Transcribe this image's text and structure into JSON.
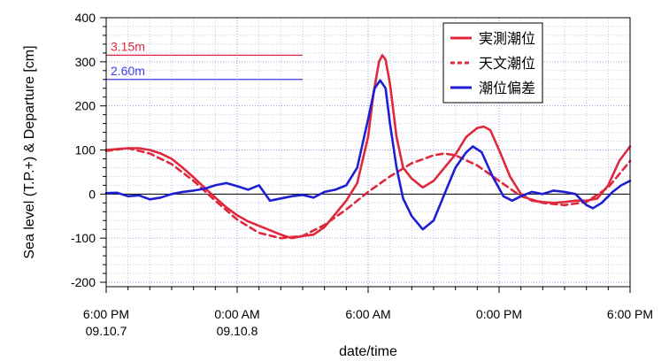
{
  "chart_data": {
    "type": "line",
    "xlabel": "date/time",
    "ylabel": "Sea level (T.P.+) & Departure [cm]",
    "ylim": [
      -210,
      400
    ],
    "xlim": [
      0,
      24
    ],
    "grid": true,
    "legend_position": "top-right",
    "y_ticks": [
      -200,
      -100,
      0,
      100,
      200,
      300,
      400
    ],
    "x_ticks": [
      {
        "x": 0,
        "line1": "6:00 PM",
        "line2": "09.10.7"
      },
      {
        "x": 6,
        "line1": "0:00 AM",
        "line2": "09.10.8"
      },
      {
        "x": 12,
        "line1": "6:00 AM",
        "line2": ""
      },
      {
        "x": 18,
        "line1": "0:00 PM",
        "line2": ""
      },
      {
        "x": 24,
        "line1": "6:00 PM",
        "line2": ""
      }
    ],
    "reference_lines": [
      {
        "label": "3.15m",
        "y": 315,
        "x_start": 0,
        "x_end": 9,
        "color": "#e0283c"
      },
      {
        "label": "2.60m",
        "y": 260,
        "x_start": 0,
        "x_end": 9,
        "color": "#3c3cf0"
      }
    ],
    "series": [
      {
        "name": "実測潮位",
        "color": "#e0283c",
        "dash": "solid",
        "points": [
          [
            0,
            100
          ],
          [
            0.5,
            102
          ],
          [
            1,
            104
          ],
          [
            1.5,
            104
          ],
          [
            2,
            100
          ],
          [
            2.5,
            92
          ],
          [
            3,
            80
          ],
          [
            3.5,
            60
          ],
          [
            4,
            38
          ],
          [
            4.5,
            15
          ],
          [
            5,
            -8
          ],
          [
            5.5,
            -30
          ],
          [
            6,
            -48
          ],
          [
            6.5,
            -62
          ],
          [
            7,
            -72
          ],
          [
            7.5,
            -82
          ],
          [
            8,
            -92
          ],
          [
            8.5,
            -100
          ],
          [
            9,
            -95
          ],
          [
            9.5,
            -92
          ],
          [
            10,
            -75
          ],
          [
            10.5,
            -45
          ],
          [
            11,
            -15
          ],
          [
            11.5,
            25
          ],
          [
            12,
            130
          ],
          [
            12.25,
            230
          ],
          [
            12.5,
            300
          ],
          [
            12.65,
            315
          ],
          [
            12.8,
            305
          ],
          [
            13,
            250
          ],
          [
            13.3,
            130
          ],
          [
            13.6,
            60
          ],
          [
            14,
            35
          ],
          [
            14.5,
            15
          ],
          [
            15,
            30
          ],
          [
            15.5,
            60
          ],
          [
            16,
            90
          ],
          [
            16.5,
            130
          ],
          [
            17,
            150
          ],
          [
            17.3,
            153
          ],
          [
            17.6,
            145
          ],
          [
            18,
            100
          ],
          [
            18.5,
            40
          ],
          [
            19,
            0
          ],
          [
            19.5,
            -15
          ],
          [
            20,
            -18
          ],
          [
            20.5,
            -20
          ],
          [
            21,
            -18
          ],
          [
            21.5,
            -15
          ],
          [
            22,
            -15
          ],
          [
            22.5,
            -10
          ],
          [
            23,
            20
          ],
          [
            23.5,
            75
          ],
          [
            24,
            108
          ]
        ]
      },
      {
        "name": "天文潮位",
        "color": "#e0283c",
        "dash": "dashed",
        "points": [
          [
            0,
            98
          ],
          [
            1,
            104
          ],
          [
            2,
            92
          ],
          [
            3,
            68
          ],
          [
            4,
            30
          ],
          [
            5,
            -15
          ],
          [
            6,
            -58
          ],
          [
            7,
            -88
          ],
          [
            8,
            -100
          ],
          [
            9,
            -95
          ],
          [
            10,
            -70
          ],
          [
            11,
            -35
          ],
          [
            12,
            5
          ],
          [
            13,
            40
          ],
          [
            14,
            70
          ],
          [
            15,
            88
          ],
          [
            15.5,
            92
          ],
          [
            16,
            88
          ],
          [
            17,
            65
          ],
          [
            18,
            30
          ],
          [
            19,
            -5
          ],
          [
            20,
            -20
          ],
          [
            21,
            -25
          ],
          [
            22,
            -18
          ],
          [
            23,
            15
          ],
          [
            24,
            75
          ]
        ]
      },
      {
        "name": "潮位偏差",
        "color": "#1e1ed2",
        "dash": "solid",
        "points": [
          [
            0,
            2
          ],
          [
            0.5,
            3
          ],
          [
            1,
            -5
          ],
          [
            1.5,
            -3
          ],
          [
            2,
            -12
          ],
          [
            2.5,
            -8
          ],
          [
            3,
            0
          ],
          [
            3.5,
            5
          ],
          [
            4,
            8
          ],
          [
            4.5,
            12
          ],
          [
            5,
            20
          ],
          [
            5.5,
            25
          ],
          [
            6,
            18
          ],
          [
            6.5,
            10
          ],
          [
            7,
            20
          ],
          [
            7.5,
            -15
          ],
          [
            8,
            -10
          ],
          [
            8.5,
            -5
          ],
          [
            9,
            -2
          ],
          [
            9.5,
            -8
          ],
          [
            10,
            5
          ],
          [
            10.5,
            10
          ],
          [
            11,
            20
          ],
          [
            11.5,
            60
          ],
          [
            12,
            170
          ],
          [
            12.3,
            240
          ],
          [
            12.55,
            258
          ],
          [
            12.8,
            240
          ],
          [
            13,
            160
          ],
          [
            13.3,
            60
          ],
          [
            13.6,
            -10
          ],
          [
            14,
            -50
          ],
          [
            14.5,
            -80
          ],
          [
            15,
            -60
          ],
          [
            15.5,
            0
          ],
          [
            16,
            60
          ],
          [
            16.5,
            95
          ],
          [
            16.8,
            108
          ],
          [
            17.2,
            95
          ],
          [
            17.7,
            40
          ],
          [
            18.2,
            -5
          ],
          [
            18.6,
            -15
          ],
          [
            19,
            -5
          ],
          [
            19.5,
            5
          ],
          [
            20,
            0
          ],
          [
            20.5,
            8
          ],
          [
            21,
            5
          ],
          [
            21.5,
            0
          ],
          [
            22,
            -25
          ],
          [
            22.3,
            -32
          ],
          [
            22.7,
            -20
          ],
          [
            23.2,
            5
          ],
          [
            23.6,
            20
          ],
          [
            24,
            30
          ]
        ]
      }
    ]
  }
}
